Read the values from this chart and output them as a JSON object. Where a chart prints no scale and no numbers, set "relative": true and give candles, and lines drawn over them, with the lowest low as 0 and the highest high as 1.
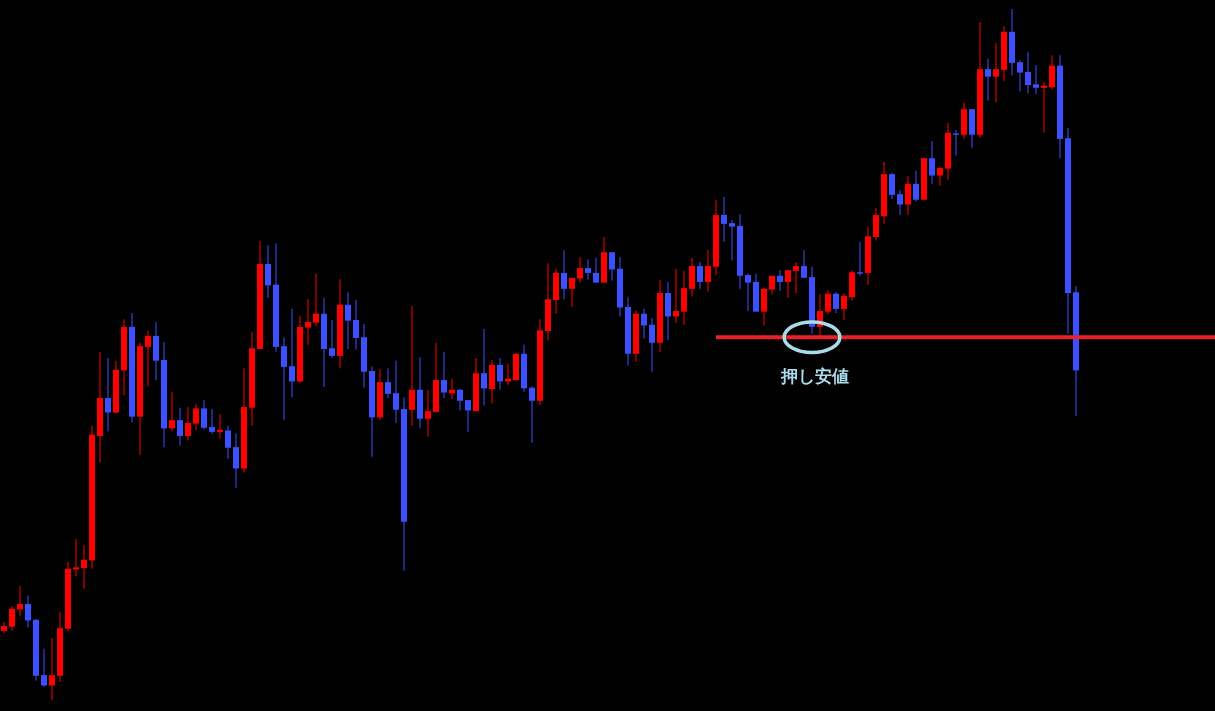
{
  "chart_data": {
    "type": "candlestick",
    "relative": true,
    "categories": [
      null,
      null,
      null,
      null,
      null,
      null,
      null,
      null,
      null,
      null,
      null,
      null,
      null,
      null,
      null,
      null,
      null,
      null,
      null,
      null,
      null,
      null,
      null,
      null,
      null,
      null,
      null,
      null,
      null,
      null,
      null,
      null,
      null,
      null,
      null,
      null,
      null,
      null,
      null,
      null,
      null,
      null,
      null,
      null,
      null,
      null,
      null,
      null,
      null,
      null,
      null,
      null,
      null,
      null,
      null,
      null,
      null,
      null,
      null,
      null,
      null,
      null,
      null,
      null,
      null,
      null,
      null,
      null,
      null,
      null,
      null,
      null,
      null,
      null,
      null,
      null,
      null,
      null,
      null,
      null,
      null,
      null,
      null,
      null,
      null,
      null,
      null,
      null,
      null,
      null,
      null,
      null,
      null,
      null,
      null,
      null,
      null,
      null,
      null,
      null,
      null,
      null,
      null,
      null,
      null,
      null,
      null,
      null,
      null,
      null,
      null,
      null,
      null,
      null,
      null,
      null,
      null,
      null,
      null,
      null,
      null,
      null,
      null,
      null,
      null,
      null,
      null,
      null,
      null,
      null,
      null,
      null,
      null,
      null,
      null
    ],
    "ohlc": [
      [
        0.1,
        0.113,
        0.097,
        0.107
      ],
      [
        0.106,
        0.136,
        0.1,
        0.132
      ],
      [
        0.131,
        0.165,
        0.121,
        0.139
      ],
      [
        0.139,
        0.151,
        0.105,
        0.115
      ],
      [
        0.116,
        0.117,
        0.028,
        0.035
      ],
      [
        0.036,
        0.074,
        0.019,
        0.021
      ],
      [
        0.021,
        0.09,
        0.0,
        0.036
      ],
      [
        0.035,
        0.127,
        0.026,
        0.104
      ],
      [
        0.103,
        0.2,
        0.1,
        0.19
      ],
      [
        0.189,
        0.233,
        0.179,
        0.192
      ],
      [
        0.191,
        0.224,
        0.161,
        0.203
      ],
      [
        0.202,
        0.397,
        0.19,
        0.384
      ],
      [
        0.382,
        0.504,
        0.344,
        0.437
      ],
      [
        0.437,
        0.495,
        0.389,
        0.416
      ],
      [
        0.416,
        0.491,
        0.415,
        0.478
      ],
      [
        0.477,
        0.551,
        0.441,
        0.54
      ],
      [
        0.54,
        0.56,
        0.402,
        0.41
      ],
      [
        0.41,
        0.517,
        0.355,
        0.512
      ],
      [
        0.511,
        0.534,
        0.454,
        0.527
      ],
      [
        0.527,
        0.547,
        0.463,
        0.491
      ],
      [
        0.492,
        0.518,
        0.366,
        0.393
      ],
      [
        0.393,
        0.446,
        0.389,
        0.405
      ],
      [
        0.405,
        0.423,
        0.368,
        0.382
      ],
      [
        0.382,
        0.424,
        0.376,
        0.401
      ],
      [
        0.4,
        0.428,
        0.391,
        0.422
      ],
      [
        0.422,
        0.434,
        0.392,
        0.394
      ],
      [
        0.395,
        0.421,
        0.385,
        0.388
      ],
      [
        0.388,
        0.414,
        0.378,
        0.391
      ],
      [
        0.39,
        0.397,
        0.349,
        0.365
      ],
      [
        0.366,
        0.386,
        0.307,
        0.335
      ],
      [
        0.335,
        0.48,
        0.329,
        0.424
      ],
      [
        0.423,
        0.533,
        0.397,
        0.509
      ],
      [
        0.508,
        0.664,
        0.508,
        0.631
      ],
      [
        0.631,
        0.658,
        0.582,
        0.6
      ],
      [
        0.601,
        0.661,
        0.504,
        0.511
      ],
      [
        0.512,
        0.525,
        0.405,
        0.482
      ],
      [
        0.483,
        0.566,
        0.438,
        0.461
      ],
      [
        0.461,
        0.556,
        0.459,
        0.54
      ],
      [
        0.539,
        0.58,
        0.514,
        0.547
      ],
      [
        0.546,
        0.617,
        0.541,
        0.559
      ],
      [
        0.559,
        0.582,
        0.453,
        0.508
      ],
      [
        0.509,
        0.55,
        0.495,
        0.498
      ],
      [
        0.498,
        0.609,
        0.48,
        0.572
      ],
      [
        0.572,
        0.59,
        0.508,
        0.549
      ],
      [
        0.55,
        0.579,
        0.507,
        0.524
      ],
      [
        0.525,
        0.544,
        0.452,
        0.475
      ],
      [
        0.476,
        0.483,
        0.352,
        0.409
      ],
      [
        0.409,
        0.479,
        0.406,
        0.46
      ],
      [
        0.46,
        0.48,
        0.437,
        0.443
      ],
      [
        0.444,
        0.491,
        0.401,
        0.42
      ],
      [
        0.421,
        0.438,
        0.187,
        0.258
      ],
      [
        0.42,
        0.57,
        0.397,
        0.449
      ],
      [
        0.449,
        0.496,
        0.394,
        0.407
      ],
      [
        0.407,
        0.449,
        0.381,
        0.418
      ],
      [
        0.417,
        0.517,
        0.416,
        0.463
      ],
      [
        0.463,
        0.504,
        0.437,
        0.445
      ],
      [
        0.444,
        0.465,
        0.436,
        0.449
      ],
      [
        0.449,
        0.45,
        0.419,
        0.433
      ],
      [
        0.434,
        0.434,
        0.388,
        0.419
      ],
      [
        0.418,
        0.495,
        0.418,
        0.473
      ],
      [
        0.473,
        0.537,
        0.426,
        0.451
      ],
      [
        0.45,
        0.492,
        0.429,
        0.485
      ],
      [
        0.485,
        0.495,
        0.449,
        0.461
      ],
      [
        0.461,
        0.486,
        0.456,
        0.465
      ],
      [
        0.463,
        0.502,
        0.462,
        0.501
      ],
      [
        0.501,
        0.514,
        0.446,
        0.451
      ],
      [
        0.452,
        0.454,
        0.372,
        0.433
      ],
      [
        0.433,
        0.551,
        0.427,
        0.535
      ],
      [
        0.534,
        0.632,
        0.52,
        0.58
      ],
      [
        0.579,
        0.624,
        0.559,
        0.618
      ],
      [
        0.618,
        0.651,
        0.58,
        0.595
      ],
      [
        0.595,
        0.611,
        0.569,
        0.611
      ],
      [
        0.61,
        0.641,
        0.604,
        0.625
      ],
      [
        0.625,
        0.638,
        0.608,
        0.618
      ],
      [
        0.618,
        0.64,
        0.604,
        0.604
      ],
      [
        0.604,
        0.67,
        0.604,
        0.648
      ],
      [
        0.648,
        0.648,
        0.607,
        0.623
      ],
      [
        0.624,
        0.641,
        0.555,
        0.568
      ],
      [
        0.569,
        0.583,
        0.484,
        0.501
      ],
      [
        0.501,
        0.564,
        0.49,
        0.559
      ],
      [
        0.559,
        0.566,
        0.523,
        0.542
      ],
      [
        0.543,
        0.553,
        0.475,
        0.517
      ],
      [
        0.517,
        0.608,
        0.504,
        0.589
      ],
      [
        0.589,
        0.605,
        0.521,
        0.555
      ],
      [
        0.555,
        0.624,
        0.546,
        0.563
      ],
      [
        0.562,
        0.621,
        0.543,
        0.596
      ],
      [
        0.595,
        0.64,
        0.584,
        0.628
      ],
      [
        0.628,
        0.634,
        0.595,
        0.605
      ],
      [
        0.605,
        0.651,
        0.591,
        0.628
      ],
      [
        0.627,
        0.724,
        0.615,
        0.702
      ],
      [
        0.702,
        0.728,
        0.663,
        0.689
      ],
      [
        0.69,
        0.695,
        0.636,
        0.685
      ],
      [
        0.686,
        0.703,
        0.595,
        0.614
      ],
      [
        0.615,
        0.617,
        0.563,
        0.604
      ],
      [
        0.605,
        0.617,
        0.562,
        0.562
      ],
      [
        0.562,
        0.597,
        0.542,
        0.595
      ],
      [
        0.594,
        0.614,
        0.587,
        0.614
      ],
      [
        0.614,
        0.622,
        0.592,
        0.605
      ],
      [
        0.605,
        0.622,
        0.582,
        0.622
      ],
      [
        0.621,
        0.634,
        0.589,
        0.628
      ],
      [
        0.628,
        0.651,
        0.611,
        0.611
      ],
      [
        0.612,
        0.627,
        0.53,
        0.54
      ],
      [
        0.54,
        0.587,
        0.527,
        0.563
      ],
      [
        0.562,
        0.593,
        0.558,
        0.588
      ],
      [
        0.588,
        0.59,
        0.56,
        0.566
      ],
      [
        0.566,
        0.589,
        0.55,
        0.585
      ],
      [
        0.583,
        0.622,
        0.578,
        0.619
      ],
      [
        0.619,
        0.663,
        0.614,
        0.617
      ],
      [
        0.618,
        0.685,
        0.601,
        0.671
      ],
      [
        0.67,
        0.712,
        0.665,
        0.702
      ],
      [
        0.7,
        0.779,
        0.689,
        0.761
      ],
      [
        0.761,
        0.763,
        0.725,
        0.731
      ],
      [
        0.732,
        0.738,
        0.702,
        0.717
      ],
      [
        0.717,
        0.758,
        0.702,
        0.747
      ],
      [
        0.747,
        0.766,
        0.721,
        0.724
      ],
      [
        0.724,
        0.784,
        0.724,
        0.784
      ],
      [
        0.784,
        0.809,
        0.747,
        0.759
      ],
      [
        0.759,
        0.771,
        0.744,
        0.77
      ],
      [
        0.769,
        0.835,
        0.753,
        0.821
      ],
      [
        0.82,
        0.825,
        0.788,
        0.818
      ],
      [
        0.818,
        0.864,
        0.812,
        0.855
      ],
      [
        0.855,
        0.855,
        0.799,
        0.818
      ],
      [
        0.818,
        0.981,
        0.813,
        0.913
      ],
      [
        0.913,
        0.928,
        0.867,
        0.902
      ],
      [
        0.902,
        0.951,
        0.865,
        0.913
      ],
      [
        0.912,
        0.975,
        0.896,
        0.967
      ],
      [
        0.967,
        1.0,
        0.904,
        0.922
      ],
      [
        0.923,
        0.926,
        0.881,
        0.908
      ],
      [
        0.909,
        0.938,
        0.878,
        0.89
      ],
      [
        0.891,
        0.919,
        0.877,
        0.886
      ],
      [
        0.886,
        0.894,
        0.821,
        0.889
      ],
      [
        0.887,
        0.933,
        0.884,
        0.918
      ],
      [
        0.918,
        0.933,
        0.784,
        0.812
      ],
      [
        0.813,
        0.828,
        0.53,
        0.589
      ],
      [
        0.59,
        0.599,
        0.411,
        0.477
      ]
    ],
    "colors": [
      "#ff0000",
      "#ff0000",
      "#ff0000",
      "#3c50ff",
      "#3c50ff",
      "#3c50ff",
      "#ff0000",
      "#ff0000",
      "#ff0000",
      "#ff0000",
      "#ff0000",
      "#ff0000",
      "#ff0000",
      "#3c50ff",
      "#ff0000",
      "#ff0000",
      "#3c50ff",
      "#ff0000",
      "#ff0000",
      "#3c50ff",
      "#3c50ff",
      "#ff0000",
      "#3c50ff",
      "#ff0000",
      "#ff0000",
      "#3c50ff",
      "#3c50ff",
      "#ff0000",
      "#3c50ff",
      "#3c50ff",
      "#ff0000",
      "#ff0000",
      "#ff0000",
      "#3c50ff",
      "#3c50ff",
      "#3c50ff",
      "#3c50ff",
      "#ff0000",
      "#ff0000",
      "#ff0000",
      "#3c50ff",
      "#3c50ff",
      "#ff0000",
      "#3c50ff",
      "#3c50ff",
      "#3c50ff",
      "#3c50ff",
      "#ff0000",
      "#3c50ff",
      "#3c50ff",
      "#3c50ff",
      "#ff0000",
      "#3c50ff",
      "#ff0000",
      "#ff0000",
      "#3c50ff",
      "#ff0000",
      "#3c50ff",
      "#3c50ff",
      "#ff0000",
      "#3c50ff",
      "#ff0000",
      "#3c50ff",
      "#ff0000",
      "#ff0000",
      "#3c50ff",
      "#3c50ff",
      "#ff0000",
      "#ff0000",
      "#ff0000",
      "#3c50ff",
      "#ff0000",
      "#ff0000",
      "#3c50ff",
      "#3c50ff",
      "#ff0000",
      "#3c50ff",
      "#3c50ff",
      "#3c50ff",
      "#ff0000",
      "#3c50ff",
      "#3c50ff",
      "#ff0000",
      "#3c50ff",
      "#ff0000",
      "#ff0000",
      "#ff0000",
      "#3c50ff",
      "#ff0000",
      "#ff0000",
      "#3c50ff",
      "#3c50ff",
      "#3c50ff",
      "#3c50ff",
      "#3c50ff",
      "#ff0000",
      "#ff0000",
      "#3c50ff",
      "#ff0000",
      "#ff0000",
      "#3c50ff",
      "#3c50ff",
      "#ff0000",
      "#ff0000",
      "#3c50ff",
      "#ff0000",
      "#ff0000",
      "#3c50ff",
      "#ff0000",
      "#ff0000",
      "#ff0000",
      "#3c50ff",
      "#3c50ff",
      "#ff0000",
      "#3c50ff",
      "#ff0000",
      "#3c50ff",
      "#ff0000",
      "#ff0000",
      "#3c50ff",
      "#ff0000",
      "#3c50ff",
      "#ff0000",
      "#3c50ff",
      "#ff0000",
      "#ff0000",
      "#3c50ff",
      "#3c50ff",
      "#3c50ff",
      "#3c50ff",
      "#ff0000",
      "#ff0000",
      "#3c50ff",
      "#3c50ff",
      "#3c50ff"
    ],
    "ref_lines": [
      {
        "axis": "y",
        "value": 0.525,
        "color": "#e8202a"
      }
    ],
    "annotations": [
      {
        "text": "押し安値",
        "y": 0.525
      }
    ]
  }
}
